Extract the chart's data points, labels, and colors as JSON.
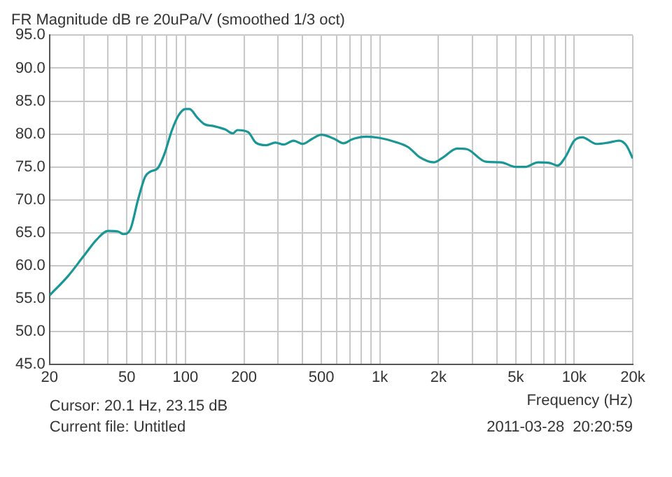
{
  "chart_data": {
    "type": "line",
    "title": "FR Magnitude dB re 20uPa/V (smoothed 1/3 oct)",
    "xlabel": "Frequency (Hz)",
    "log": "x",
    "grid": true,
    "legend": false,
    "marker": "none",
    "line_style": "solid",
    "xlim": [
      20,
      20000
    ],
    "xticks": [
      20,
      {
        "value": 30,
        "label": null
      },
      {
        "value": 40,
        "label": null
      },
      50,
      {
        "value": 60,
        "label": null
      },
      {
        "value": 70,
        "label": null
      },
      {
        "value": 80,
        "label": null
      },
      {
        "value": 90,
        "label": null
      },
      100,
      200,
      {
        "value": 300,
        "label": null
      },
      {
        "value": 400,
        "label": null
      },
      500,
      {
        "value": 600,
        "label": null
      },
      {
        "value": 700,
        "label": null
      },
      {
        "value": 800,
        "label": null
      },
      {
        "value": 900,
        "label": null
      },
      {
        "value": 1000,
        "label": "1k"
      },
      {
        "value": 2000,
        "label": "2k"
      },
      {
        "value": 3000,
        "label": null
      },
      {
        "value": 4000,
        "label": null
      },
      {
        "value": 5000,
        "label": "5k"
      },
      {
        "value": 6000,
        "label": null
      },
      {
        "value": 7000,
        "label": null
      },
      {
        "value": 8000,
        "label": null
      },
      {
        "value": 9000,
        "label": null
      },
      {
        "value": 10000,
        "label": "10k"
      },
      {
        "value": 20000,
        "label": "20k"
      }
    ],
    "ylim": [
      45,
      95
    ],
    "yticks": [
      {
        "value": 45,
        "label": "45.0"
      },
      {
        "value": 50,
        "label": "50.0"
      },
      {
        "value": 55,
        "label": "55.0"
      },
      {
        "value": 60,
        "label": "60.0"
      },
      {
        "value": 65,
        "label": "65.0"
      },
      {
        "value": 70,
        "label": "70.0"
      },
      {
        "value": 75,
        "label": "75.0"
      },
      {
        "value": 80,
        "label": "80.0"
      },
      {
        "value": 85,
        "label": "85.0"
      },
      {
        "value": 90,
        "label": "90.0"
      },
      {
        "value": 95,
        "label": "95.0"
      }
    ],
    "annotations": [
      "Cursor: 20.1 Hz, 23.15 dB",
      "Current file: Untitled",
      "2011-03-28  20:20:59"
    ],
    "series": [
      {
        "color": "#1a9696",
        "x": [
          20,
          25,
          30,
          35,
          40,
          45,
          48,
          52,
          57,
          62,
          66,
          72,
          78,
          85,
          92,
          100,
          105,
          115,
          125,
          140,
          160,
          175,
          185,
          210,
          230,
          260,
          290,
          320,
          360,
          400,
          450,
          500,
          580,
          650,
          720,
          850,
          1000,
          1200,
          1400,
          1600,
          1900,
          2100,
          2500,
          2800,
          3500,
          4200,
          5000,
          5600,
          6500,
          7500,
          8200,
          9000,
          10000,
          11000,
          13000,
          15000,
          17000,
          18500,
          20000
        ],
        "values": [
          55.5,
          58.5,
          61.5,
          64,
          65.3,
          65.2,
          64.8,
          65.5,
          70,
          73.5,
          74.3,
          74.8,
          77,
          80.5,
          82.8,
          83.8,
          83.8,
          82.5,
          81.5,
          81.2,
          80.7,
          80.1,
          80.6,
          80.3,
          78.7,
          78.3,
          78.7,
          78.4,
          79,
          78.5,
          79.3,
          79.9,
          79.3,
          78.6,
          79.2,
          79.6,
          79.4,
          78.8,
          78,
          76.5,
          75.7,
          76.4,
          77.8,
          77.7,
          75.8,
          75.7,
          75,
          75,
          75.7,
          75.6,
          75.2,
          76.5,
          79,
          79.5,
          78.5,
          78.7,
          79,
          78.3,
          76.3
        ]
      }
    ]
  }
}
